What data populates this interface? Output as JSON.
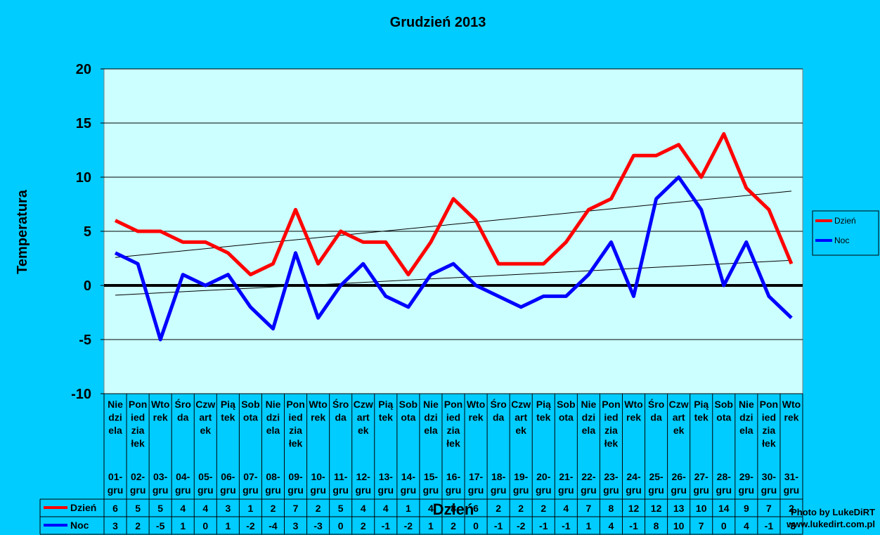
{
  "chart_data": {
    "type": "line",
    "title": "Grudzień 2013",
    "ylabel": "Temperatura",
    "xlabel": "Dzień",
    "ylim": [
      -10,
      20
    ],
    "yticks": [
      20,
      15,
      10,
      5,
      0,
      -5,
      -10
    ],
    "grid": true,
    "trendlines": true,
    "legend_position": "right",
    "categories": [
      {
        "day": "Niedziela",
        "date": "01-gru"
      },
      {
        "day": "Poniedziałek",
        "date": "02-gru"
      },
      {
        "day": "Wtorek",
        "date": "03-gru"
      },
      {
        "day": "Środa",
        "date": "04-gru"
      },
      {
        "day": "Czwartek",
        "date": "05-gru"
      },
      {
        "day": "Piątek",
        "date": "06-gru"
      },
      {
        "day": "Sobota",
        "date": "07-gru"
      },
      {
        "day": "Niedziela",
        "date": "08-gru"
      },
      {
        "day": "Poniedziałek",
        "date": "09-gru"
      },
      {
        "day": "Wtorek",
        "date": "10-gru"
      },
      {
        "day": "Środa",
        "date": "11-gru"
      },
      {
        "day": "Czwartek",
        "date": "12-gru"
      },
      {
        "day": "Piątek",
        "date": "13-gru"
      },
      {
        "day": "Sobota",
        "date": "14-gru"
      },
      {
        "day": "Niedziela",
        "date": "15-gru"
      },
      {
        "day": "Poniedziałek",
        "date": "16-gru"
      },
      {
        "day": "Wtorek",
        "date": "17-gru"
      },
      {
        "day": "Środa",
        "date": "18-gru"
      },
      {
        "day": "Czwartek",
        "date": "19-gru"
      },
      {
        "day": "Piątek",
        "date": "20-gru"
      },
      {
        "day": "Sobota",
        "date": "21-gru"
      },
      {
        "day": "Niedziela",
        "date": "22-gru"
      },
      {
        "day": "Poniedziałek",
        "date": "23-gru"
      },
      {
        "day": "Wtorek",
        "date": "24-gru"
      },
      {
        "day": "Środa",
        "date": "25-gru"
      },
      {
        "day": "Czwartek",
        "date": "26-gru"
      },
      {
        "day": "Piątek",
        "date": "27-gru"
      },
      {
        "day": "Sobota",
        "date": "28-gru"
      },
      {
        "day": "Niedziela",
        "date": "29-gru"
      },
      {
        "day": "Poniedziałek",
        "date": "30-gru"
      },
      {
        "day": "Wtorek",
        "date": "31-gru"
      }
    ],
    "series": [
      {
        "name": "Dzień",
        "color": "#ff0000",
        "values": [
          6,
          5,
          5,
          4,
          4,
          3,
          1,
          2,
          7,
          2,
          5,
          4,
          4,
          1,
          4,
          8,
          6,
          2,
          2,
          2,
          4,
          7,
          8,
          12,
          12,
          13,
          10,
          14,
          9,
          7,
          2
        ]
      },
      {
        "name": "Noc",
        "color": "#0000ff",
        "values": [
          3,
          2,
          -5,
          1,
          0,
          1,
          -2,
          -4,
          3,
          -3,
          0,
          2,
          -1,
          -2,
          1,
          2,
          0,
          -1,
          -2,
          -1,
          -1,
          1,
          4,
          -1,
          8,
          10,
          7,
          0,
          4,
          -1,
          -3
        ]
      }
    ],
    "colors": {
      "background": "#00ccff",
      "plot_area": "#ccffff"
    }
  },
  "credit": {
    "line1": "Photo by LukeDiRT",
    "line2": "www.lukedirt.com.pl"
  }
}
